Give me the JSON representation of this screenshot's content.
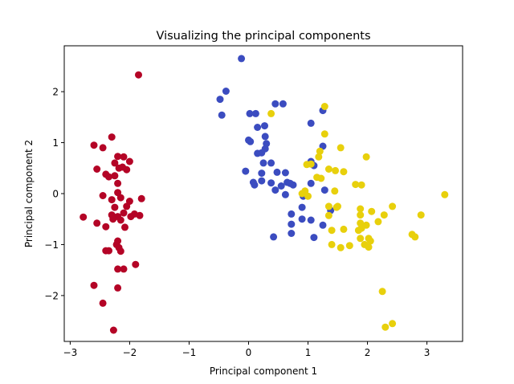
{
  "chart_data": {
    "type": "scatter",
    "title": "Visualizing the principal components",
    "xlabel": "Principal component 1",
    "ylabel": "Principal component 2",
    "xlim": [
      -3.1,
      3.6
    ],
    "ylim": [
      -2.9,
      2.9
    ],
    "xticks": [
      -3,
      -2,
      -1,
      0,
      1,
      2,
      3
    ],
    "xtick_labels": [
      "−3",
      "−2",
      "−1",
      "0",
      "1",
      "2",
      "3"
    ],
    "yticks": [
      -2,
      -1,
      0,
      1,
      2
    ],
    "ytick_labels": [
      "−2",
      "−1",
      "0",
      "1",
      "2"
    ],
    "grid": false,
    "series": [
      {
        "color": "#b40426",
        "points": [
          [
            -1.85,
            2.33
          ],
          [
            -2.6,
            0.95
          ],
          [
            -2.45,
            0.9
          ],
          [
            -2.3,
            1.11
          ],
          [
            -2.25,
            0.6
          ],
          [
            -2.2,
            0.73
          ],
          [
            -2.1,
            0.72
          ],
          [
            -2.0,
            0.63
          ],
          [
            -2.55,
            0.48
          ],
          [
            -2.4,
            0.38
          ],
          [
            -2.35,
            0.33
          ],
          [
            -2.25,
            0.35
          ],
          [
            -2.18,
            0.5
          ],
          [
            -2.12,
            0.52
          ],
          [
            -2.05,
            0.47
          ],
          [
            -2.2,
            0.2
          ],
          [
            -2.45,
            -0.04
          ],
          [
            -2.3,
            -0.12
          ],
          [
            -2.15,
            -0.08
          ],
          [
            -2.2,
            0.02
          ],
          [
            -2.0,
            -0.15
          ],
          [
            -1.8,
            -0.1
          ],
          [
            -2.05,
            -0.25
          ],
          [
            -2.25,
            -0.27
          ],
          [
            -2.78,
            -0.46
          ],
          [
            -2.3,
            -0.42
          ],
          [
            -2.2,
            -0.45
          ],
          [
            -2.15,
            -0.52
          ],
          [
            -2.28,
            -0.5
          ],
          [
            -2.1,
            -0.38
          ],
          [
            -1.98,
            -0.45
          ],
          [
            -1.92,
            -0.4
          ],
          [
            -1.83,
            -0.43
          ],
          [
            -2.55,
            -0.58
          ],
          [
            -2.4,
            -0.65
          ],
          [
            -2.08,
            -0.66
          ],
          [
            -2.2,
            -0.93
          ],
          [
            -2.22,
            -1.0
          ],
          [
            -2.18,
            -1.06
          ],
          [
            -2.15,
            -1.13
          ],
          [
            -2.35,
            -1.12
          ],
          [
            -2.4,
            -1.12
          ],
          [
            -1.9,
            -1.39
          ],
          [
            -2.2,
            -1.48
          ],
          [
            -2.1,
            -1.48
          ],
          [
            -2.6,
            -1.8
          ],
          [
            -2.2,
            -1.85
          ],
          [
            -2.45,
            -2.15
          ],
          [
            -2.27,
            -2.68
          ]
        ]
      },
      {
        "color": "#3b4cc0",
        "points": [
          [
            -0.12,
            2.65
          ],
          [
            -0.38,
            2.01
          ],
          [
            -0.48,
            1.85
          ],
          [
            -0.45,
            1.54
          ],
          [
            0.02,
            1.57
          ],
          [
            0.12,
            1.57
          ],
          [
            0.45,
            1.76
          ],
          [
            0.58,
            1.76
          ],
          [
            1.25,
            1.63
          ],
          [
            1.05,
            1.38
          ],
          [
            0.15,
            1.3
          ],
          [
            0.27,
            1.33
          ],
          [
            0.28,
            1.12
          ],
          [
            0.0,
            1.05
          ],
          [
            0.03,
            1.02
          ],
          [
            0.3,
            0.98
          ],
          [
            0.28,
            0.88
          ],
          [
            0.22,
            0.8
          ],
          [
            0.15,
            0.79
          ],
          [
            1.25,
            0.93
          ],
          [
            0.25,
            0.6
          ],
          [
            0.38,
            0.6
          ],
          [
            1.05,
            0.63
          ],
          [
            1.1,
            0.55
          ],
          [
            -0.05,
            0.44
          ],
          [
            0.22,
            0.4
          ],
          [
            0.48,
            0.42
          ],
          [
            0.62,
            0.41
          ],
          [
            0.08,
            0.22
          ],
          [
            0.1,
            0.17
          ],
          [
            0.22,
            0.25
          ],
          [
            0.38,
            0.21
          ],
          [
            0.55,
            0.15
          ],
          [
            0.65,
            0.22
          ],
          [
            0.7,
            0.2
          ],
          [
            0.75,
            0.17
          ],
          [
            1.05,
            0.2
          ],
          [
            0.45,
            0.07
          ],
          [
            0.62,
            -0.02
          ],
          [
            0.92,
            -0.05
          ],
          [
            0.95,
            -0.02
          ],
          [
            1.28,
            0.07
          ],
          [
            0.72,
            -0.4
          ],
          [
            0.9,
            -0.27
          ],
          [
            1.38,
            -0.33
          ],
          [
            1.05,
            -0.52
          ],
          [
            0.9,
            -0.5
          ],
          [
            0.72,
            -0.6
          ],
          [
            1.25,
            -0.62
          ],
          [
            0.72,
            -0.78
          ],
          [
            0.42,
            -0.85
          ],
          [
            1.1,
            -0.86
          ]
        ]
      },
      {
        "color": "#e8d00c",
        "points": [
          [
            1.28,
            1.71
          ],
          [
            0.38,
            1.57
          ],
          [
            1.28,
            1.17
          ],
          [
            1.55,
            0.9
          ],
          [
            1.2,
            0.83
          ],
          [
            1.18,
            0.72
          ],
          [
            1.98,
            0.72
          ],
          [
            1.05,
            0.58
          ],
          [
            0.98,
            0.57
          ],
          [
            1.35,
            0.48
          ],
          [
            1.46,
            0.45
          ],
          [
            1.6,
            0.43
          ],
          [
            1.15,
            0.32
          ],
          [
            1.22,
            0.3
          ],
          [
            1.8,
            0.18
          ],
          [
            1.9,
            0.17
          ],
          [
            1.45,
            0.05
          ],
          [
            0.9,
            0.0
          ],
          [
            0.95,
            0.05
          ],
          [
            1.0,
            -0.05
          ],
          [
            1.35,
            -0.25
          ],
          [
            1.48,
            -0.27
          ],
          [
            1.5,
            -0.25
          ],
          [
            1.35,
            -0.43
          ],
          [
            1.88,
            -0.3
          ],
          [
            1.88,
            -0.42
          ],
          [
            2.07,
            -0.35
          ],
          [
            2.42,
            -0.25
          ],
          [
            2.28,
            -0.42
          ],
          [
            2.9,
            -0.42
          ],
          [
            3.3,
            -0.02
          ],
          [
            1.88,
            -0.58
          ],
          [
            2.18,
            -0.55
          ],
          [
            1.98,
            -0.62
          ],
          [
            1.4,
            -0.72
          ],
          [
            1.6,
            -0.7
          ],
          [
            1.9,
            -0.68
          ],
          [
            1.85,
            -0.72
          ],
          [
            2.02,
            -0.88
          ],
          [
            2.05,
            -0.93
          ],
          [
            1.88,
            -0.88
          ],
          [
            2.75,
            -0.8
          ],
          [
            2.8,
            -0.85
          ],
          [
            1.4,
            -1.0
          ],
          [
            1.55,
            -1.06
          ],
          [
            1.7,
            -1.02
          ],
          [
            1.95,
            -1.0
          ],
          [
            2.02,
            -1.05
          ],
          [
            2.25,
            -1.92
          ],
          [
            2.42,
            -2.55
          ],
          [
            2.3,
            -2.62
          ]
        ]
      }
    ]
  }
}
